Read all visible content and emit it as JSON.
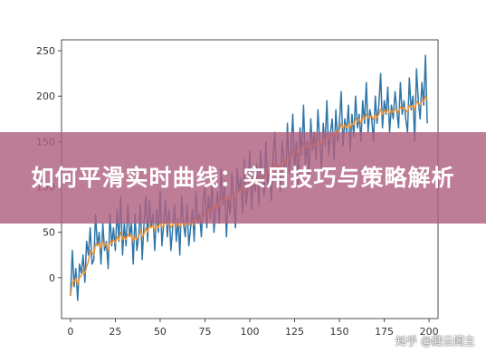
{
  "banner": {
    "title": "如何平滑实时曲线：实用技巧与策略解析"
  },
  "watermark": {
    "text": "知乎 @藏云阁主"
  },
  "chart_data": {
    "type": "line",
    "title": "",
    "xlabel": "",
    "ylabel": "",
    "xlim": [
      -5,
      205
    ],
    "ylim": [
      -45,
      262
    ],
    "xticks": [
      0,
      25,
      50,
      75,
      100,
      125,
      150,
      175,
      200
    ],
    "yticks": [
      0,
      50,
      100,
      150,
      200,
      250
    ],
    "grid": false,
    "colors": {
      "raw": "#2e75a8",
      "smoothed": "#e8923a"
    },
    "series": [
      {
        "values": [
          -20,
          30,
          -10,
          10,
          -25,
          15,
          5,
          25,
          -5,
          40,
          25,
          55,
          15,
          20,
          70,
          35,
          50,
          15,
          60,
          30,
          40,
          10,
          70,
          35,
          55,
          30,
          75,
          40,
          90,
          25,
          60,
          35,
          80,
          45,
          60,
          15,
          70,
          30,
          45,
          80,
          20,
          60,
          90,
          40,
          85,
          55,
          70,
          30,
          75,
          50,
          95,
          35,
          60,
          85,
          45,
          75,
          30,
          55,
          80,
          40,
          65,
          25,
          90,
          60,
          45,
          80,
          35,
          55,
          75,
          40,
          95,
          60,
          70,
          45,
          85,
          100,
          55,
          90,
          65,
          110,
          50,
          75,
          95,
          60,
          120,
          80,
          100,
          45,
          90,
          70,
          115,
          85,
          55,
          120,
          95,
          110,
          70,
          130,
          80,
          100,
          140,
          75,
          115,
          95,
          125,
          80,
          140,
          110,
          90,
          150,
          100,
          120,
          85,
          135,
          160,
          110,
          125,
          95,
          150,
          130,
          105,
          170,
          115,
          140,
          180,
          120,
          150,
          100,
          165,
          135,
          190,
          125,
          150,
          110,
          175,
          140,
          160,
          130,
          185,
          150,
          120,
          170,
          145,
          195,
          135,
          160,
          175,
          130,
          185,
          150,
          170,
          205,
          145,
          175,
          160,
          190,
          140,
          180,
          155,
          200,
          165,
          180,
          150,
          195,
          170,
          215,
          160,
          185,
          175,
          150,
          200,
          170,
          190,
          225,
          165,
          195,
          180,
          210,
          160,
          190,
          175,
          205,
          185,
          165,
          215,
          180,
          195,
          175,
          160,
          220,
          185,
          200,
          150,
          230,
          195,
          175,
          215,
          190,
          245,
          170
        ],
        "x_start": 0,
        "x_step": 1
      },
      {
        "values": [
          -20,
          -5,
          -5,
          0,
          -8,
          0,
          2,
          8,
          5,
          12,
          18,
          30,
          28,
          25,
          38,
          35,
          38,
          32,
          40,
          35,
          38,
          30,
          40,
          38,
          42,
          38,
          45,
          42,
          50,
          42,
          45,
          42,
          48,
          45,
          48,
          40,
          45,
          42,
          45,
          52,
          45,
          48,
          55,
          50,
          58,
          55,
          58,
          52,
          58,
          55,
          62,
          55,
          58,
          62,
          58,
          62,
          55,
          58,
          62,
          58,
          60,
          55,
          62,
          60,
          58,
          62,
          58,
          60,
          62,
          58,
          65,
          62,
          65,
          62,
          68,
          72,
          68,
          75,
          72,
          80,
          75,
          78,
          82,
          78,
          88,
          85,
          90,
          82,
          88,
          85,
          92,
          90,
          85,
          95,
          95,
          98,
          95,
          102,
          98,
          100,
          108,
          100,
          105,
          102,
          108,
          105,
          112,
          110,
          108,
          118,
          115,
          118,
          112,
          120,
          128,
          122,
          125,
          120,
          128,
          128,
          125,
          135,
          130,
          132,
          140,
          135,
          140,
          135,
          142,
          140,
          148,
          142,
          145,
          140,
          148,
          145,
          148,
          145,
          152,
          150,
          145,
          152,
          150,
          158,
          152,
          155,
          160,
          155,
          162,
          158,
          162,
          170,
          165,
          168,
          165,
          170,
          165,
          170,
          168,
          175,
          172,
          175,
          170,
          176,
          175,
          180,
          176,
          178,
          178,
          174,
          180,
          176,
          180,
          186,
          180,
          184,
          182,
          186,
          180,
          184,
          182,
          186,
          185,
          182,
          188,
          186,
          188,
          185,
          182,
          190,
          188,
          190,
          185,
          194,
          192,
          190,
          195,
          194,
          200,
          196
        ],
        "x_start": 0,
        "x_step": 1
      }
    ]
  }
}
